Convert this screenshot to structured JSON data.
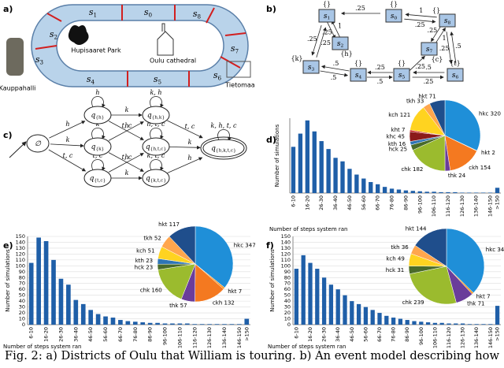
{
  "figure": {
    "panel_labels": [
      "a)",
      "b)",
      "c)",
      "d)",
      "e)",
      "f)"
    ],
    "caption": "Fig. 2: a) Districts of Oulu that William is touring. b) An event model describing how",
    "districts": {
      "segments": [
        [
          "s",
          "0"
        ],
        [
          "s",
          "1"
        ],
        [
          "s",
          "2"
        ],
        [
          "s",
          "3"
        ],
        [
          "s",
          "4"
        ],
        [
          "s",
          "5"
        ],
        [
          "s",
          "6"
        ],
        [
          "s",
          "7"
        ],
        [
          "s",
          "8"
        ]
      ],
      "places": [
        "Hupisaaret Park",
        "Oulu cathedral",
        "Kauppahalli",
        "Tietomaa"
      ]
    },
    "event_model": {
      "nodes": [
        {
          "name": "s",
          "sub": "0",
          "label": "{}"
        },
        {
          "name": "s",
          "sub": "1",
          "label": "{}"
        },
        {
          "name": "s",
          "sub": "2",
          "label": "{h}"
        },
        {
          "name": "s",
          "sub": "3",
          "label": "{k}"
        },
        {
          "name": "s",
          "sub": "4",
          "label": "{}"
        },
        {
          "name": "s",
          "sub": "5",
          "label": "{}"
        },
        {
          "name": "s",
          "sub": "6",
          "label": "{t}"
        },
        {
          "name": "s",
          "sub": "7",
          "label": "{c}"
        },
        {
          "name": "s",
          "sub": "8",
          "label": "{}"
        }
      ],
      "edges": [
        {
          "from": 0,
          "to": 1,
          "weight": ".25"
        },
        {
          "from": 8,
          "to": 0,
          "weight": "1"
        },
        {
          "from": 0,
          "to": 8,
          "weight": ".25"
        },
        {
          "from": 1,
          "to": 2,
          "weight": ".25"
        },
        {
          "from": 2,
          "to": 1,
          "weight": "1"
        },
        {
          "from": 1,
          "to": 3,
          "weight": ".25"
        },
        {
          "from": 3,
          "to": 1,
          "weight": ".25"
        },
        {
          "from": 3,
          "to": 4,
          "weight": ".5"
        },
        {
          "from": 4,
          "to": 3,
          "weight": ".5"
        },
        {
          "from": 4,
          "to": 5,
          "weight": ".5"
        },
        {
          "from": 5,
          "to": 4,
          "weight": ".25"
        },
        {
          "from": 5,
          "to": 6,
          "weight": ".25"
        },
        {
          "from": 6,
          "to": 5,
          "weight": ".5"
        },
        {
          "from": 5,
          "to": 7,
          "weight": ".25"
        },
        {
          "from": 7,
          "to": 8,
          "weight": "1"
        },
        {
          "from": 8,
          "to": 7,
          "weight": ".25"
        },
        {
          "from": 8,
          "to": 6,
          "weight": ".25"
        },
        {
          "from": 6,
          "to": 8,
          "weight": ".5"
        }
      ]
    },
    "automaton": {
      "states": [
        {
          "label": "∅"
        },
        {
          "label": "q",
          "sub": "{h}"
        },
        {
          "label": "q",
          "sub": "{k}"
        },
        {
          "label": "q",
          "sub": "{t,c}"
        },
        {
          "label": "q",
          "sub": "{h,k}"
        },
        {
          "label": "q",
          "sub": "{h,t,c}"
        },
        {
          "label": "q",
          "sub": "{k,t,c}"
        },
        {
          "label": "q",
          "sub": "{h,k,t,c}"
        }
      ],
      "transitions": [
        {
          "from": 0,
          "to": 1,
          "label": "h"
        },
        {
          "from": 0,
          "to": 2,
          "label": "k"
        },
        {
          "from": 0,
          "to": 3,
          "label": "t, c"
        },
        {
          "from": 1,
          "to": 4,
          "label": "k"
        },
        {
          "from": 1,
          "to": 5,
          "label": "t, c"
        },
        {
          "from": 2,
          "to": 4,
          "label": "h"
        },
        {
          "from": 2,
          "to": 6,
          "label": "t, c"
        },
        {
          "from": 3,
          "to": 5,
          "label": "h"
        },
        {
          "from": 3,
          "to": 6,
          "label": "k"
        },
        {
          "from": 4,
          "to": 7,
          "label": "t, c"
        },
        {
          "from": 5,
          "to": 7,
          "label": "k"
        },
        {
          "from": 6,
          "to": 7,
          "label": "h"
        }
      ],
      "loops": [
        {
          "state": 1,
          "label": "h"
        },
        {
          "state": 2,
          "label": "k"
        },
        {
          "state": 3,
          "label": "t, c"
        },
        {
          "state": 4,
          "label": "k, h"
        },
        {
          "state": 5,
          "label": "h, t, c"
        },
        {
          "state": 6,
          "label": "k, t, c"
        },
        {
          "state": 7,
          "label": "k, h, t, c"
        }
      ]
    }
  },
  "chart_data": [
    {
      "type": "bar",
      "xlabel": "Number of steps system ran",
      "ylabel": "Number of simulations",
      "color": "#1f5fa8",
      "categories": [
        "6-10",
        null,
        "16-20",
        null,
        "26-30",
        null,
        "36-40",
        null,
        "46-50",
        null,
        "56-60",
        null,
        "66-70",
        null,
        "76-80",
        null,
        "86-90",
        null,
        "96-100",
        null,
        "106-110",
        null,
        "116-120",
        null,
        "126-130",
        null,
        "136-140",
        null,
        "146-150",
        ">150"
      ],
      "values": [
        105,
        135,
        165,
        140,
        118,
        100,
        80,
        72,
        55,
        42,
        33,
        25,
        20,
        14,
        10,
        8,
        6,
        5,
        4,
        3,
        3,
        2,
        2,
        2,
        1,
        1,
        1,
        1,
        1,
        12
      ],
      "ylim": [
        0,
        170
      ]
    },
    {
      "type": "pie",
      "values": [
        320,
        2,
        154,
        24,
        182,
        25,
        16,
        45,
        7,
        121,
        33,
        71
      ],
      "value_labels": [
        "hkc 320",
        "hkt 2",
        "ckh 154",
        "thk 24",
        "chk 182",
        "hck 25",
        "kth 16",
        "khc 45",
        "kht 7",
        "kch 121",
        "tkh 33",
        "hkt 71"
      ],
      "colors": [
        "#1f8fd8",
        "#f7941d",
        "#f47920",
        "#6a3d9a",
        "#9bbb2e",
        "#4a6b2a",
        "#2e75b6",
        "#8b1a1a",
        "#c00000",
        "#ffd320",
        "#ffa64d",
        "#1f4e8c"
      ]
    },
    {
      "type": "bar",
      "xlabel": "Number of steps system ran",
      "ylabel": "Number of simulations",
      "color": "#1f5fa8",
      "categories": [
        "6-10",
        null,
        "16-20",
        null,
        "26-30",
        null,
        "36-40",
        null,
        "46-50",
        null,
        "56-60",
        null,
        "66-70",
        null,
        "76-80",
        null,
        "86-90",
        null,
        "96-100",
        null,
        "106-110",
        null,
        "116-120",
        null,
        "126-130",
        null,
        "136-140",
        null,
        "146-150",
        ">150"
      ],
      "values": [
        105,
        148,
        142,
        110,
        78,
        68,
        42,
        35,
        25,
        18,
        14,
        12,
        8,
        6,
        5,
        4,
        3,
        3,
        2,
        2,
        2,
        2,
        1,
        1,
        1,
        1,
        1,
        1,
        1,
        10
      ],
      "ylim": [
        0,
        150
      ],
      "yticks": [
        0,
        10,
        20,
        30,
        40,
        50,
        60,
        70,
        80,
        90,
        100,
        110,
        120,
        130,
        140,
        150
      ]
    },
    {
      "type": "pie",
      "values": [
        347,
        7,
        132,
        57,
        160,
        23,
        23,
        51,
        52,
        117
      ],
      "value_labels": [
        "hkc 347",
        "hkt 7",
        "ckh 132",
        "thk 57",
        "chk 160",
        "hck 23",
        "kth 23",
        "kch 51",
        "tkh 52",
        "hkt 117"
      ],
      "colors": [
        "#1f8fd8",
        "#f7941d",
        "#f47920",
        "#6a3d9a",
        "#9bbb2e",
        "#4a6b2a",
        "#2e75b6",
        "#ffd320",
        "#ffa64d",
        "#1f4e8c"
      ]
    },
    {
      "type": "bar",
      "xlabel": "Number of steps system ran",
      "ylabel": "Number of simulations",
      "color": "#1f5fa8",
      "categories": [
        "6-10",
        null,
        "16-20",
        null,
        "26-30",
        null,
        "36-40",
        null,
        "46-50",
        null,
        "56-60",
        null,
        "66-70",
        null,
        "76-80",
        null,
        "86-90",
        null,
        "96-100",
        null,
        "106-110",
        null,
        "116-120",
        null,
        "126-130",
        null,
        "136-140",
        null,
        "146-150",
        ">150"
      ],
      "values": [
        95,
        118,
        105,
        95,
        80,
        68,
        60,
        50,
        40,
        35,
        30,
        25,
        20,
        15,
        12,
        10,
        8,
        6,
        5,
        4,
        3,
        3,
        2,
        2,
        2,
        1,
        1,
        1,
        1,
        32
      ],
      "ylim": [
        0,
        150
      ],
      "yticks": [
        0,
        10,
        20,
        30,
        40,
        50,
        60,
        70,
        80,
        90,
        100,
        110,
        120,
        130,
        140,
        150
      ]
    },
    {
      "type": "pie",
      "values": [
        344,
        7,
        71,
        239,
        31,
        49,
        36,
        144
      ],
      "value_labels": [
        "hkc 344",
        "hkt 7",
        "thk 71",
        "chk 239",
        "hck 31",
        "kch 49",
        "tkh 36",
        "hkt 144"
      ],
      "colors": [
        "#1f8fd8",
        "#f7941d",
        "#6a3d9a",
        "#9bbb2e",
        "#4a6b2a",
        "#ffd320",
        "#ffa64d",
        "#1f4e8c"
      ]
    }
  ]
}
